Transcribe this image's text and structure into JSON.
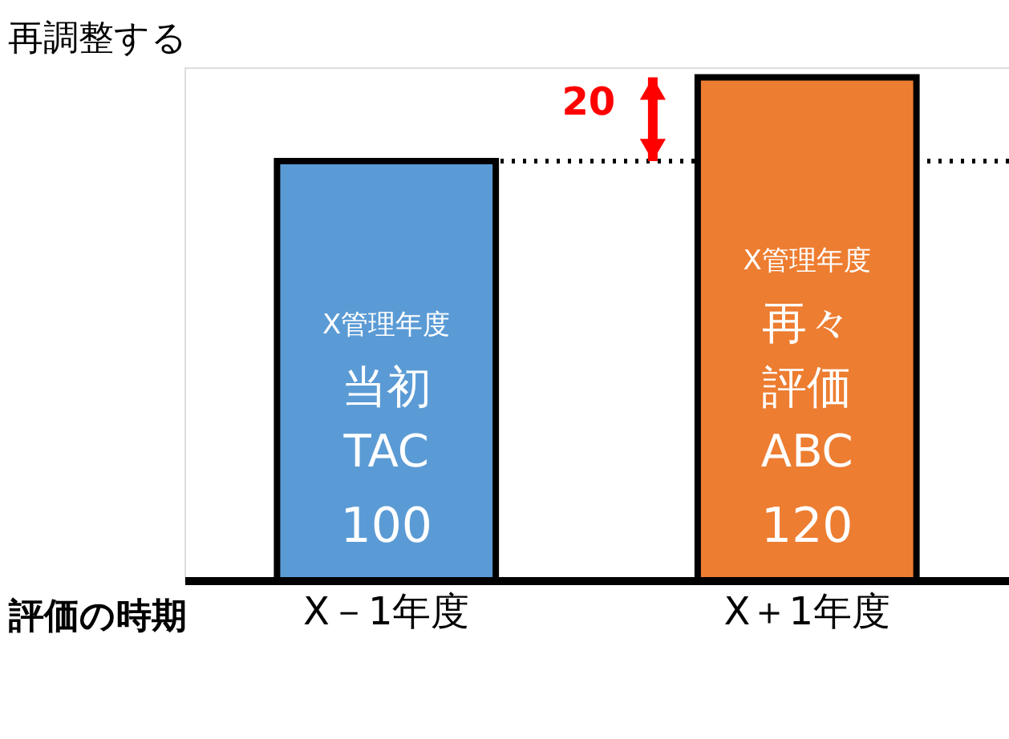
{
  "chart_data": {
    "type": "bar",
    "title": "再調整する",
    "xlabel": "評価の時期",
    "categories": [
      "X－1年度",
      "X＋1年度"
    ],
    "values": [
      100,
      120
    ],
    "colors": [
      "#5b9bd5",
      "#ed7d31"
    ],
    "data_labels": true,
    "ref_lines": [
      {
        "axis": "y",
        "value": 100,
        "color": "#000000",
        "line_style": "dotted"
      }
    ],
    "annotations": [
      "X管理年度",
      "当初",
      "TAC",
      "X管理年度",
      "再々",
      "評価",
      "ABC",
      "20"
    ],
    "grid": false,
    "tick_labels": "x"
  }
}
